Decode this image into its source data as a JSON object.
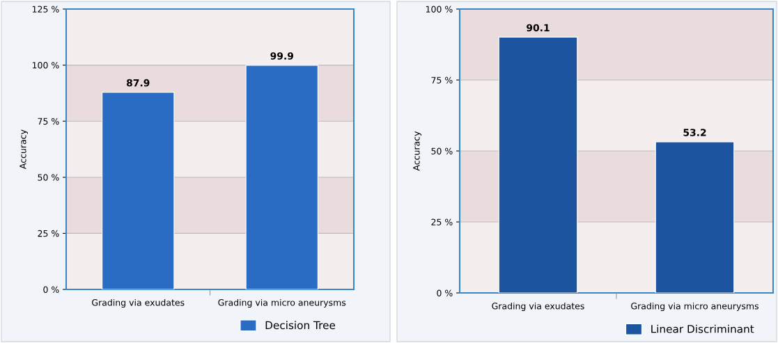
{
  "chart_data": [
    {
      "type": "bar",
      "ylabel": "Accuracy",
      "categories": [
        "Grading via exudates",
        "Grading via micro aneurysms"
      ],
      "series": [
        {
          "name": "Decision Tree",
          "color": "#2a6cc4",
          "values": [
            87.9,
            99.9
          ]
        }
      ],
      "ylim": [
        0,
        125
      ],
      "yticks": [
        {
          "value": 0,
          "label": "0 %"
        },
        {
          "value": 25,
          "label": "25 %"
        },
        {
          "value": 50,
          "label": "50 %"
        },
        {
          "value": 75,
          "label": "75 %"
        },
        {
          "value": 100,
          "label": "100 %"
        },
        {
          "value": 125,
          "label": "125 %"
        }
      ],
      "bands": [
        {
          "axis": "y",
          "from": 25,
          "to": 50,
          "color": "#eadcdc"
        },
        {
          "axis": "y",
          "from": 75,
          "to": 100,
          "color": "#eadcdc"
        }
      ],
      "grid": "y",
      "data_labels": true,
      "legend": "bottom right"
    },
    {
      "type": "bar",
      "ylabel": "Accuracy",
      "categories": [
        "Grading via exudates",
        "Grading via micro aneurysms"
      ],
      "series": [
        {
          "name": "Linear Discriminant",
          "color": "#1c54a0",
          "values": [
            90.1,
            53.2
          ]
        }
      ],
      "ylim": [
        0,
        100
      ],
      "yticks": [
        {
          "value": 0,
          "label": "0 %"
        },
        {
          "value": 25,
          "label": "25 %"
        },
        {
          "value": 50,
          "label": "50 %"
        },
        {
          "value": 75,
          "label": "75 %"
        },
        {
          "value": 100,
          "label": "100 %"
        }
      ],
      "bands": [
        {
          "axis": "y",
          "from": 25,
          "to": 50,
          "color": "#eadcdc"
        },
        {
          "axis": "y",
          "from": 75,
          "to": 100,
          "color": "#eadcdc"
        }
      ],
      "grid": "y",
      "data_labels": true,
      "legend": "bottom right"
    }
  ]
}
